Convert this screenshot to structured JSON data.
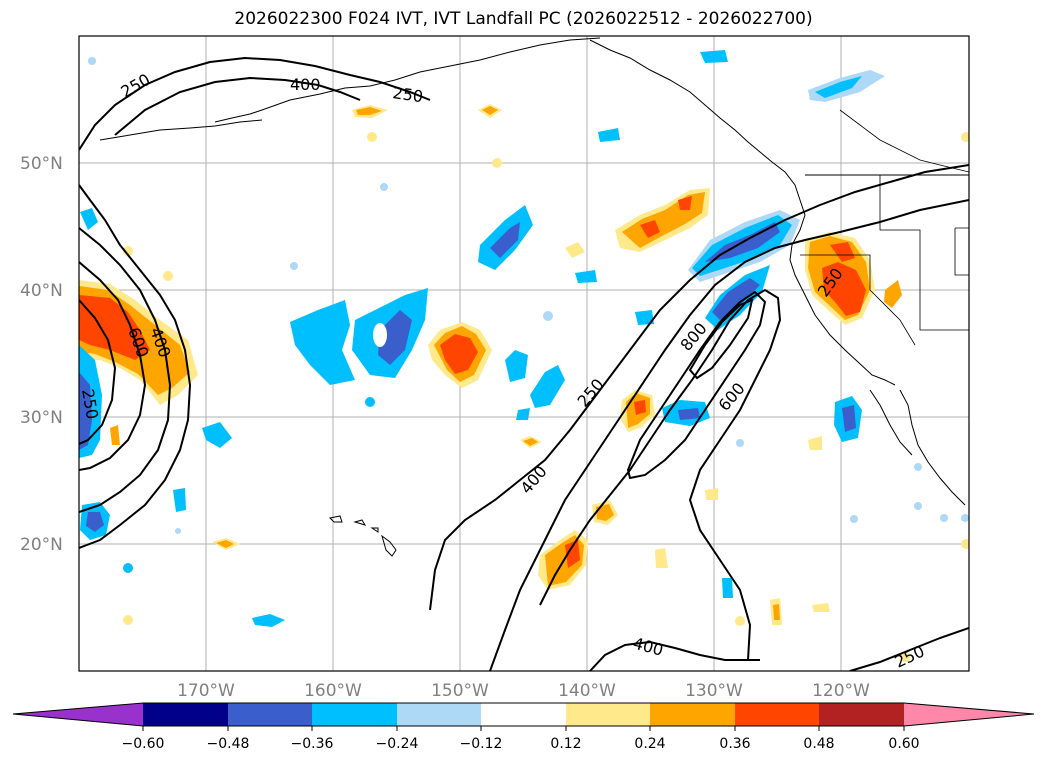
{
  "title": "2026022300 F024 IVT, IVT Landfall PC (2026022512 - 2026022700)",
  "latitude_labels": [
    "50°N",
    "40°N",
    "30°N",
    "20°N"
  ],
  "longitude_labels": [
    "170°W",
    "160°W",
    "150°W",
    "140°W",
    "130°W",
    "120°W"
  ],
  "colorbar": {
    "tick_labels": [
      "−0.60",
      "−0.48",
      "−0.36",
      "−0.24",
      "−0.12",
      "0.12",
      "0.24",
      "0.36",
      "0.48",
      "0.60"
    ],
    "colors": [
      "#9932cc",
      "#00008b",
      "#3a5fcd",
      "#00bfff",
      "#add8f6",
      "#ffffff",
      "#ffe98a",
      "#ffa500",
      "#ff4500",
      "#b22222",
      "#ff88aa"
    ]
  },
  "contour_labels": [
    {
      "text": "250"
    },
    {
      "text": "400"
    },
    {
      "text": "250"
    },
    {
      "text": "600"
    },
    {
      "text": "400"
    },
    {
      "text": "250"
    },
    {
      "text": "800"
    },
    {
      "text": "250"
    },
    {
      "text": "600"
    },
    {
      "text": "400"
    },
    {
      "text": "250"
    },
    {
      "text": "400"
    },
    {
      "text": "250"
    }
  ]
}
